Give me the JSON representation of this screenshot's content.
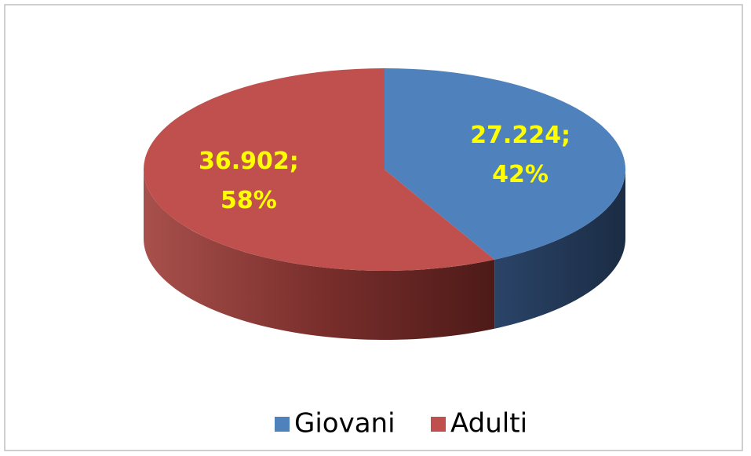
{
  "chart_data": {
    "type": "pie",
    "three_d": true,
    "categories": [
      "Giovani",
      "Adulti"
    ],
    "values": [
      27224,
      36902
    ],
    "value_labels": [
      "27.224;",
      "36.902;"
    ],
    "percents": [
      42,
      58
    ],
    "percent_labels": [
      "42%",
      "58%"
    ],
    "colors": [
      "#4f81bd",
      "#c0504d"
    ],
    "legend": "bottom"
  }
}
